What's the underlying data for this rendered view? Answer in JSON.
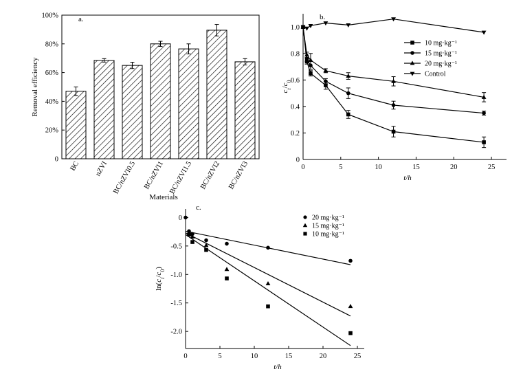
{
  "chart_data": [
    {
      "panel": "a.",
      "type": "bar",
      "xlabel": "Materials",
      "ylabel": "Removal efficiency",
      "ylim": [
        0,
        100
      ],
      "yticks": [
        "0",
        "20%",
        "40%",
        "60%",
        "80%",
        "100%"
      ],
      "yticks_values": [
        0,
        20,
        40,
        60,
        80,
        100
      ],
      "categories": [
        "BC",
        "nZVI",
        "BC/nZVI0.5",
        "BC/nZVI1",
        "BC/nZVI1.5",
        "BC/nZVI2",
        "BC/nZVI3"
      ],
      "values": [
        47,
        68.5,
        65,
        80,
        76.5,
        89.5,
        67.5
      ],
      "errors": [
        3,
        1.2,
        2.2,
        1.8,
        3.5,
        4,
        2.2
      ]
    },
    {
      "panel": "b.",
      "type": "line",
      "xlabel": "t/h",
      "ylabel": "ct/c0",
      "xlim": [
        0,
        27
      ],
      "ylim": [
        0,
        1.1
      ],
      "xticks": [
        0,
        5,
        10,
        15,
        20,
        25
      ],
      "yticks": [
        "0",
        "0.2",
        "0.4",
        "0.6",
        "0.8",
        "1.0"
      ],
      "yticks_values": [
        0,
        0.2,
        0.4,
        0.6,
        0.8,
        1.0
      ],
      "legend_position": "right",
      "series": [
        {
          "name": "10 mg·kg⁻¹",
          "marker": "square",
          "x": [
            0,
            0.5,
            1,
            3,
            6,
            12,
            24
          ],
          "y": [
            1.0,
            0.74,
            0.65,
            0.56,
            0.34,
            0.21,
            0.13
          ],
          "err": [
            0,
            0.02,
            0.02,
            0.03,
            0.03,
            0.04,
            0.04
          ]
        },
        {
          "name": "15 mg·kg⁻¹",
          "marker": "circle",
          "x": [
            0,
            0.5,
            1,
            3,
            6,
            12,
            24
          ],
          "y": [
            1.0,
            0.76,
            0.71,
            0.59,
            0.5,
            0.41,
            0.35
          ],
          "err": [
            0,
            0.02,
            0.03,
            0.02,
            0.04,
            0.03,
            0.015
          ]
        },
        {
          "name": "20 mg·kg⁻¹",
          "marker": "triangle",
          "x": [
            0,
            0.5,
            1,
            3,
            6,
            12,
            24
          ],
          "y": [
            1.0,
            0.79,
            0.75,
            0.67,
            0.63,
            0.59,
            0.47
          ],
          "err": [
            0,
            0.02,
            0.05,
            0.015,
            0.025,
            0.035,
            0.035
          ]
        },
        {
          "name": "Control",
          "marker": "down-triangle",
          "x": [
            0,
            0.5,
            1,
            3,
            6,
            12,
            24
          ],
          "y": [
            1.0,
            0.99,
            1.01,
            1.03,
            1.015,
            1.06,
            0.96
          ],
          "err": [
            0,
            0,
            0,
            0,
            0,
            0,
            0
          ]
        }
      ]
    },
    {
      "panel": "c.",
      "type": "scatter",
      "xlabel": "t/h",
      "ylabel": "ln(ct/c0)",
      "xlim": [
        0,
        26
      ],
      "ylim": [
        -2.3,
        0.15
      ],
      "xticks": [
        0,
        5,
        10,
        15,
        20,
        25
      ],
      "yticks": [
        "0",
        "-0.5",
        "-1.0",
        "-1.5",
        "-2.0"
      ],
      "yticks_values": [
        0,
        -0.5,
        -1.0,
        -1.5,
        -2.0
      ],
      "legend_position": "top-right",
      "series": [
        {
          "name": "20 mg·kg⁻¹",
          "marker": "circle",
          "x": [
            0,
            0.5,
            1,
            3,
            6,
            12,
            24
          ],
          "y": [
            0,
            -0.24,
            -0.29,
            -0.4,
            -0.46,
            -0.53,
            -0.76
          ],
          "fit": [
            -0.24,
            -0.0245
          ]
        },
        {
          "name": "15 mg·kg⁻¹",
          "marker": "triangle",
          "x": [
            0.5,
            1,
            3,
            6,
            12,
            24
          ],
          "y": [
            -0.27,
            -0.34,
            -0.49,
            -0.91,
            -1.16,
            -1.56
          ],
          "fit": [
            -0.27,
            -0.0608
          ]
        },
        {
          "name": "10 mg·kg⁻¹",
          "marker": "square",
          "x": [
            0.5,
            1,
            3,
            6,
            12,
            24
          ],
          "y": [
            -0.3,
            -0.43,
            -0.57,
            -1.07,
            -1.56,
            -2.03
          ],
          "fit": [
            -0.3,
            -0.0812
          ]
        }
      ]
    }
  ]
}
